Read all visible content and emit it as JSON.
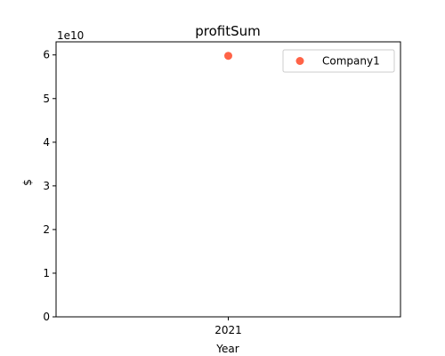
{
  "chart_data": {
    "type": "scatter",
    "title": "profitSum",
    "xlabel": "Year",
    "ylabel": "$",
    "y_multiplier_label": "1e10",
    "x_categories": [
      "2021"
    ],
    "y_ticks": [
      "0",
      "1",
      "2",
      "3",
      "4",
      "5",
      "6"
    ],
    "ylim": [
      0,
      63000000000
    ],
    "series": [
      {
        "name": "Company1",
        "color": "#ff6347",
        "points": [
          {
            "x": "2021",
            "y": 59800000000
          }
        ]
      }
    ],
    "grid": false,
    "legend_position": "top-right"
  }
}
